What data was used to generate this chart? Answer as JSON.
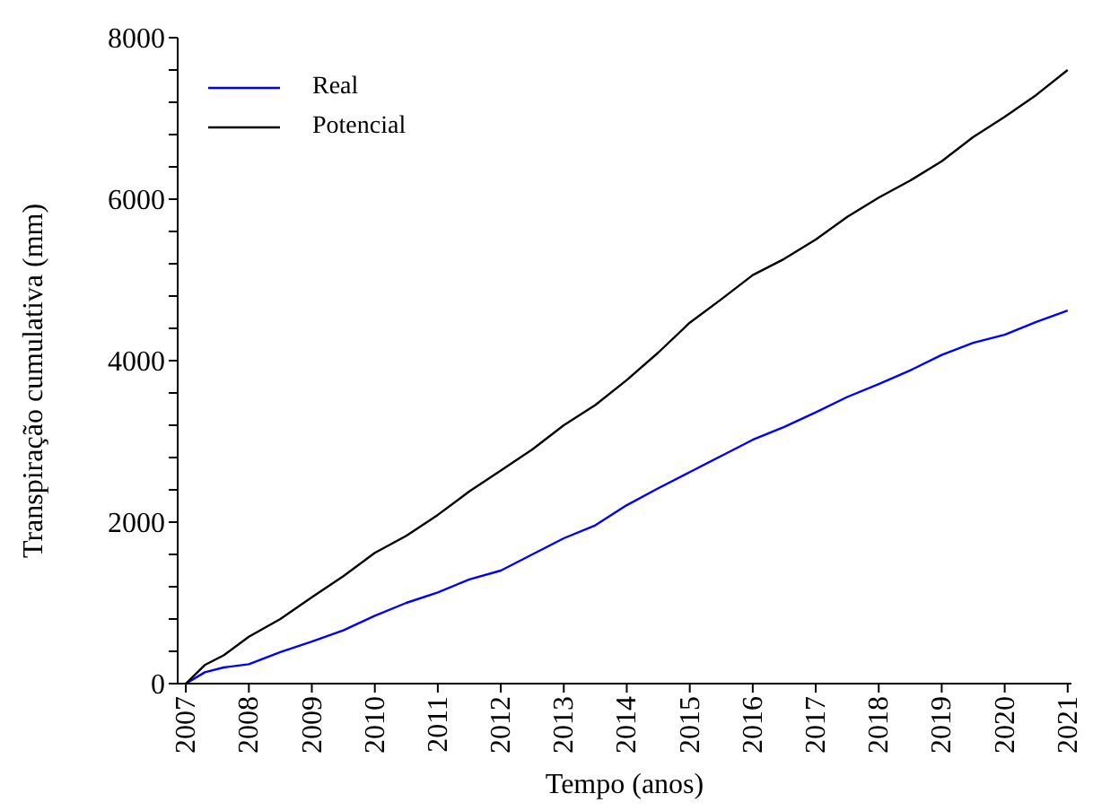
{
  "chart_data": {
    "type": "line",
    "xlabel": "Tempo (anos)",
    "ylabel": "Transpiração cumulativa (mm)",
    "xlim": [
      2006.87,
      2021.06
    ],
    "xticks": [
      2007,
      2008,
      2009,
      2010,
      2011,
      2012,
      2013,
      2014,
      2015,
      2016,
      2017,
      2018,
      2019,
      2020,
      2021
    ],
    "ylim": [
      0,
      8000
    ],
    "yticks": [
      0,
      {
        "value": 400,
        "label": null
      },
      {
        "value": 800,
        "label": null
      },
      {
        "value": 1200,
        "label": null
      },
      {
        "value": 1600,
        "label": null
      },
      2000,
      {
        "value": 2400,
        "label": null
      },
      {
        "value": 2800,
        "label": null
      },
      {
        "value": 3200,
        "label": null
      },
      {
        "value": 3600,
        "label": null
      },
      4000,
      {
        "value": 4400,
        "label": null
      },
      {
        "value": 4800,
        "label": null
      },
      {
        "value": 5200,
        "label": null
      },
      {
        "value": 5600,
        "label": null
      },
      6000,
      {
        "value": 6400,
        "label": null
      },
      {
        "value": 6800,
        "label": null
      },
      {
        "value": 7200,
        "label": null
      },
      {
        "value": 7600,
        "label": null
      },
      8000
    ],
    "x": [
      2007,
      2007.3,
      2007.6,
      2008,
      2008.5,
      2009,
      2009.5,
      2010,
      2010.5,
      2011,
      2011.5,
      2012,
      2012.5,
      2013,
      2013.5,
      2014,
      2014.5,
      2015,
      2015.5,
      2016,
      2016.5,
      2017,
      2017.5,
      2018,
      2018.5,
      2019,
      2019.5,
      2020,
      2020.5,
      2021
    ],
    "series": [
      {
        "name": "Real",
        "color": "#0000ff",
        "values": [
          0,
          140,
          200,
          240,
          390,
          520,
          660,
          840,
          1000,
          1130,
          1290,
          1400,
          1600,
          1800,
          1960,
          2210,
          2420,
          2620,
          2820,
          3020,
          3180,
          3360,
          3550,
          3710,
          3880,
          4070,
          4220,
          4320,
          4480,
          4620
        ]
      },
      {
        "name": "Potencial",
        "color": "#000000",
        "values": [
          0,
          230,
          350,
          580,
          800,
          1070,
          1330,
          1620,
          1830,
          2090,
          2380,
          2640,
          2900,
          3200,
          3450,
          3760,
          4100,
          4470,
          4760,
          5060,
          5260,
          5500,
          5780,
          6020,
          6230,
          6470,
          6770,
          7020,
          7290,
          7600
        ]
      }
    ],
    "legend": "top left",
    "grid": false,
    "marker": "none",
    "line_style": "solid"
  }
}
